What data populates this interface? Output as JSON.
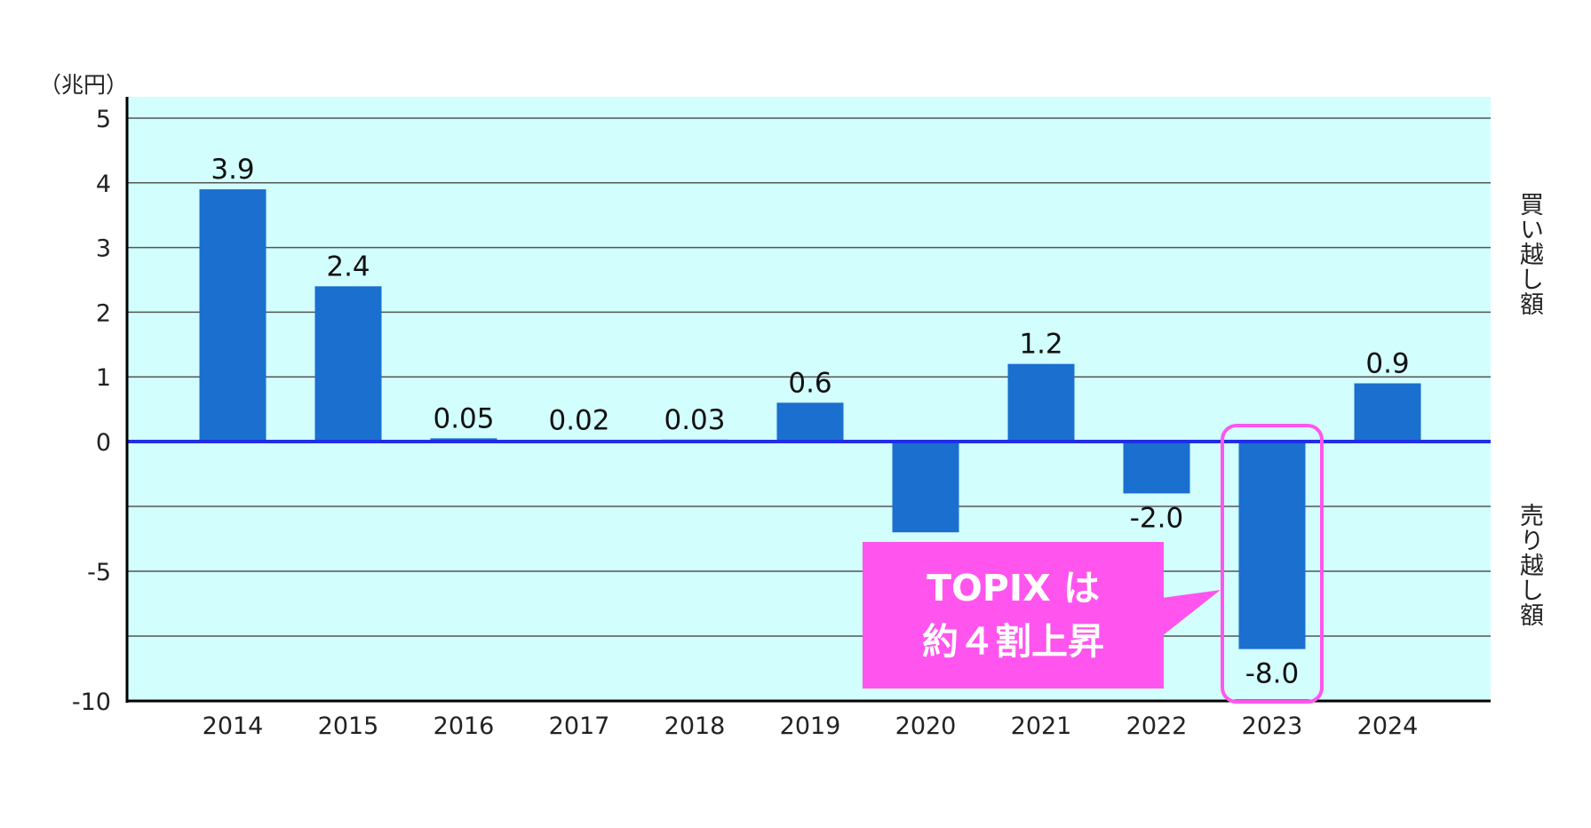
{
  "chart_data": {
    "type": "bar",
    "unit_label": "（兆円）",
    "categories": [
      "2014",
      "2015",
      "2016",
      "2017",
      "2018",
      "2019",
      "2020",
      "2021",
      "2022",
      "2023",
      "2024"
    ],
    "values": [
      3.9,
      2.4,
      0.05,
      0.02,
      0.03,
      0.6,
      -3.5,
      1.2,
      -2.0,
      -8.0,
      0.9
    ],
    "data_labels": [
      "3.9",
      "2.4",
      "0.05",
      "0.02",
      "0.03",
      "0.6",
      "",
      "1.2",
      "-2.0",
      "-8.0",
      "0.9"
    ],
    "yticks": [
      5,
      4,
      3,
      2,
      1,
      0,
      -5,
      -10
    ],
    "ytick_labels": [
      "5",
      "4",
      "3",
      "2",
      "1",
      "0",
      "-5",
      "-10"
    ],
    "gridlines": [
      5,
      4,
      3,
      2,
      1,
      -2.5,
      -5,
      -7.5
    ],
    "ylim": [
      -10,
      5
    ],
    "y_scale_note": "positive and negative sides use different scales",
    "right_label_positive": "買い越し額",
    "right_label_negative": "売り越し額",
    "annotation": {
      "line1": "TOPIX は",
      "line2": "約４割上昇",
      "target": "2023"
    },
    "grid": true,
    "colors": {
      "plot_bg": "#d2fefe",
      "bar": "#1a6fcf",
      "zero_line": "#1f2fe6",
      "highlight": "#ff55ee",
      "grid": "#555555"
    }
  }
}
